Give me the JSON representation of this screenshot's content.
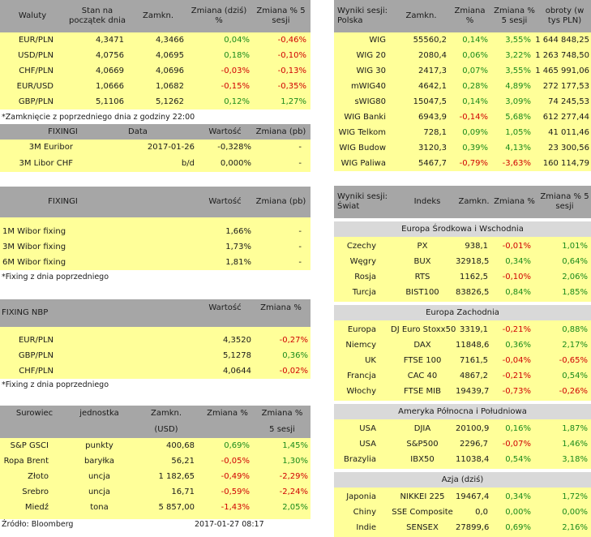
{
  "waluty": {
    "headers": [
      "Waluty",
      "Stan na początek dnia",
      "Zamkn.",
      "Zmiana (dziś) %",
      "Zmiana % 5 sesji"
    ],
    "rows": [
      [
        "EUR/PLN",
        "4,3471",
        "4,3466",
        "0,04%",
        "-0,46%"
      ],
      [
        "USD/PLN",
        "4,0756",
        "4,0695",
        "0,18%",
        "-0,10%"
      ],
      [
        "CHF/PLN",
        "4,0669",
        "4,0696",
        "-0,03%",
        "-0,13%"
      ],
      [
        "EUR/USD",
        "1,0666",
        "1,0682",
        "-0,15%",
        "-0,35%"
      ],
      [
        "GBP/PLN",
        "5,1106",
        "5,1262",
        "0,12%",
        "1,27%"
      ]
    ],
    "note": "*Zamknięcie z poprzedniego dnia z godziny 22:00"
  },
  "fixing1": {
    "headers": [
      "FIXINGI",
      "Data",
      "Wartość",
      "Zmiana (pb)"
    ],
    "rows": [
      [
        "3M Euribor",
        "2017-01-26",
        "-0,328%",
        "-"
      ],
      [
        "3M Libor CHF",
        "b/d",
        "0,000%",
        "-"
      ]
    ]
  },
  "fixing2": {
    "headers": [
      "FIXINGI",
      "Wartość",
      "Zmiana (pb)"
    ],
    "rows": [
      [
        "1M Wibor fixing",
        "1,66%",
        "-"
      ],
      [
        "3M Wibor fixing",
        "1,73%",
        "-"
      ],
      [
        "6M Wibor fixing",
        "1,81%",
        "-"
      ]
    ],
    "note": "*Fixing z dnia poprzedniego"
  },
  "nbp": {
    "headers": [
      "FIXING NBP",
      "Wartość",
      "Zmiana %"
    ],
    "rows": [
      [
        "EUR/PLN",
        "4,3520",
        "-0,27%"
      ],
      [
        "GBP/PLN",
        "5,1278",
        "0,36%"
      ],
      [
        "CHF/PLN",
        "4,0644",
        "-0,02%"
      ]
    ],
    "note": "*Fixing z dnia poprzedniego"
  },
  "surowce": {
    "headers": [
      "Surowiec",
      "jednostka",
      "Zamkn.",
      "(USD)",
      "Zmiana %",
      "Zmiana %",
      "5 sesji"
    ],
    "rows": [
      [
        "S&P GSCI",
        "punkty",
        "400,68",
        "0,69%",
        "1,45%"
      ],
      [
        "Ropa Brent",
        "baryłka",
        "56,21",
        "-0,05%",
        "1,30%"
      ],
      [
        "Złoto",
        "uncja",
        "1 182,65",
        "-0,49%",
        "-2,29%"
      ],
      [
        "Srebro",
        "uncja",
        "16,71",
        "-0,59%",
        "-2,24%"
      ],
      [
        "Miedź",
        "tona",
        "5 857,00",
        "-1,43%",
        "2,05%"
      ]
    ]
  },
  "polska": {
    "headers": [
      "Wyniki sesji: Polska",
      "Zamkn.",
      "Zmiana %",
      "Zmiana % 5 sesji",
      "obroty (w tys PLN)"
    ],
    "rows": [
      [
        "WIG",
        "55560,2",
        "0,14%",
        "3,55%",
        "1 644 848,25"
      ],
      [
        "WIG 20",
        "2080,4",
        "0,06%",
        "3,22%",
        "1 263 748,50"
      ],
      [
        "WIG 30",
        "2417,3",
        "0,07%",
        "3,55%",
        "1 465 991,06"
      ],
      [
        "mWIG40",
        "4642,1",
        "0,28%",
        "4,89%",
        "272 177,53"
      ],
      [
        "sWIG80",
        "15047,5",
        "0,14%",
        "3,09%",
        "74 245,53"
      ],
      [
        "WIG Banki",
        "6943,9",
        "-0,14%",
        "5,68%",
        "612 277,44"
      ],
      [
        "WIG Telkom",
        "728,1",
        "0,09%",
        "1,05%",
        "41 011,46"
      ],
      [
        "WIG Budow",
        "3120,3",
        "0,39%",
        "4,13%",
        "23 300,56"
      ],
      [
        "WIG Paliwa",
        "5467,7",
        "-0,79%",
        "-3,63%",
        "160 114,79"
      ]
    ]
  },
  "swiat": {
    "headers": [
      "Wyniki sesji: Świat",
      "Indeks",
      "Zamkn.",
      "Zmiana %",
      "Zmiana % 5 sesji"
    ],
    "sections": [
      {
        "title": "Europa Środkowa i Wschodnia",
        "rows": [
          [
            "Czechy",
            "PX",
            "938,1",
            "-0,01%",
            "1,01%"
          ],
          [
            "Węgry",
            "BUX",
            "32918,5",
            "0,34%",
            "0,64%"
          ],
          [
            "Rosja",
            "RTS",
            "1162,5",
            "-0,10%",
            "2,06%"
          ],
          [
            "Turcja",
            "BIST100",
            "83826,5",
            "0,84%",
            "1,85%"
          ]
        ]
      },
      {
        "title": "Europa Zachodnia",
        "rows": [
          [
            "Europa",
            "DJ Euro Stoxx50",
            "3319,1",
            "-0,21%",
            "0,88%"
          ],
          [
            "Niemcy",
            "DAX",
            "11848,6",
            "0,36%",
            "2,17%"
          ],
          [
            "UK",
            "FTSE 100",
            "7161,5",
            "-0,04%",
            "-0,65%"
          ],
          [
            "Francja",
            "CAC 40",
            "4867,2",
            "-0,21%",
            "0,54%"
          ],
          [
            "Włochy",
            "FTSE MIB",
            "19439,7",
            "-0,73%",
            "-0,26%"
          ]
        ]
      },
      {
        "title": "Ameryka Północna i Południowa",
        "rows": [
          [
            "USA",
            "DJIA",
            "20100,9",
            "0,16%",
            "1,87%"
          ],
          [
            "USA",
            "S&P500",
            "2296,7",
            "-0,07%",
            "1,46%"
          ],
          [
            "Brazylia",
            "IBX50",
            "11038,4",
            "0,54%",
            "3,18%"
          ]
        ]
      },
      {
        "title": "Azja (dziś)",
        "rows": [
          [
            "Japonia",
            "NIKKEI 225",
            "19467,4",
            "0,34%",
            "1,72%"
          ],
          [
            "Chiny",
            "SSE Composite",
            "0,0",
            "0,00%",
            "0,00%"
          ],
          [
            "Indie",
            "SENSEX",
            "27899,6",
            "0,69%",
            "2,16%"
          ]
        ]
      }
    ]
  },
  "footer": {
    "source": "Źródło: Bloomberg",
    "date": "2017-01-27 08:17"
  },
  "colors": {
    "header_bg": "#a6a6a6",
    "row_bg": "#ffff99",
    "section_bg": "#d9d9d9",
    "positive": "#1a8a1a",
    "negative": "#d00000"
  }
}
